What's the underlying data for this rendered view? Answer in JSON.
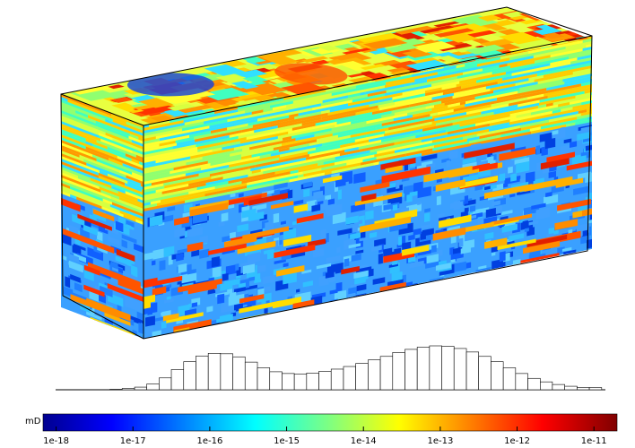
{
  "chart_data": {
    "type": "histogram",
    "unit_label": "mD",
    "xscale": "log",
    "xlim": [
      6.76e-19,
      2e-11
    ],
    "xticks": [
      1e-18,
      1e-17,
      1e-16,
      1e-15,
      1e-14,
      1e-13,
      1e-12,
      1e-11
    ],
    "ylim": [
      0,
      100
    ],
    "bins": [
      5.01e-18,
      7.24e-18,
      1.05e-17,
      1.51e-17,
      2.19e-17,
      3.16e-17,
      4.57e-17,
      6.61e-17,
      9.55e-17,
      1.38e-16,
      2e-16,
      2.88e-16,
      4.17e-16,
      6.03e-16,
      8.71e-16,
      1.26e-15,
      1.82e-15,
      2.63e-15,
      3.8e-15,
      5.5e-15,
      7.94e-15,
      1.15e-14,
      1.66e-14,
      2.4e-14,
      3.47e-14,
      5.01e-14,
      7.24e-14,
      1.05e-13,
      1.51e-13,
      2.19e-13,
      3.16e-13,
      4.57e-13,
      6.61e-13,
      9.55e-13,
      1.38e-12,
      2e-12,
      2.88e-12,
      4.17e-12,
      6.03e-12,
      8.71e-12,
      1.26e-11
    ],
    "values": [
      1,
      3,
      6,
      13,
      27,
      46,
      64,
      77,
      83,
      82,
      75,
      63,
      50,
      41,
      37,
      36,
      38,
      42,
      47,
      53,
      60,
      68,
      76,
      85,
      92,
      97,
      100,
      99,
      94,
      86,
      76,
      64,
      50,
      37,
      26,
      18,
      12,
      8,
      5,
      5
    ],
    "color": "#ffffff"
  }
}
